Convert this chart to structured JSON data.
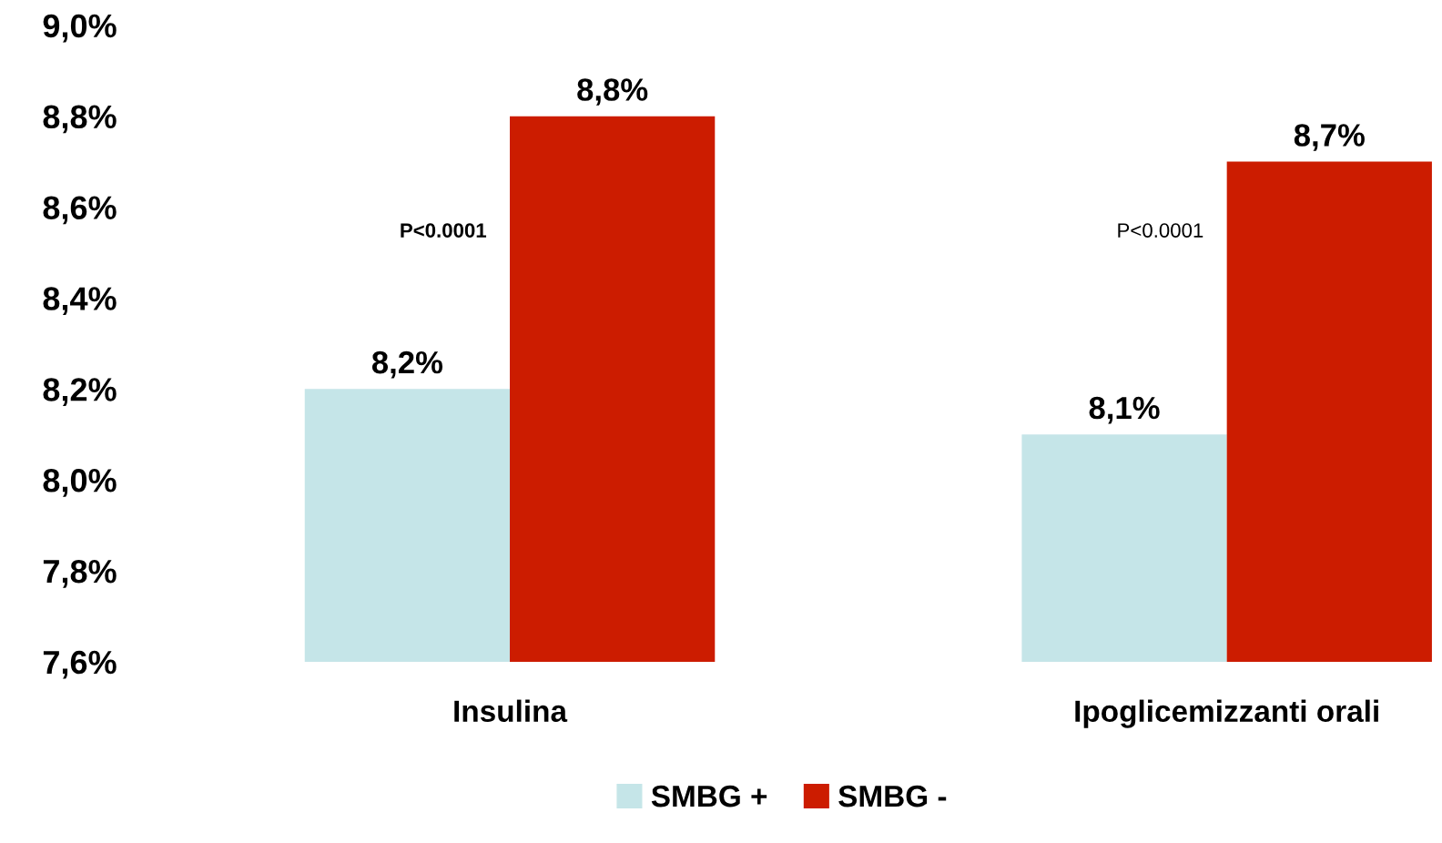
{
  "chart_data": {
    "type": "bar",
    "categories": [
      "Insulina",
      "Ipoglicemizzanti orali"
    ],
    "series": [
      {
        "name": "SMBG +",
        "color": "#c5e5e8",
        "values": [
          8.2,
          8.1
        ],
        "value_labels": [
          "8,2%",
          "8,1%"
        ]
      },
      {
        "name": "SMBG -",
        "color": "#cc1c00",
        "values": [
          8.8,
          8.7
        ],
        "value_labels": [
          "8,8%",
          "8,7%"
        ]
      }
    ],
    "ylim": [
      7.6,
      9.0
    ],
    "yticks": [
      {
        "value": 7.6,
        "label": "7,6%"
      },
      {
        "value": 7.8,
        "label": "7,8%"
      },
      {
        "value": 8.0,
        "label": "8,0%"
      },
      {
        "value": 8.2,
        "label": "8,2%"
      },
      {
        "value": 8.4,
        "label": "8,4%"
      },
      {
        "value": 8.6,
        "label": "8,6%"
      },
      {
        "value": 8.8,
        "label": "8,8%"
      },
      {
        "value": 9.0,
        "label": "9,0%"
      }
    ],
    "annotations": [
      "P<0.0001",
      "P<0.0001"
    ],
    "grid": false,
    "legend": "bottom"
  }
}
